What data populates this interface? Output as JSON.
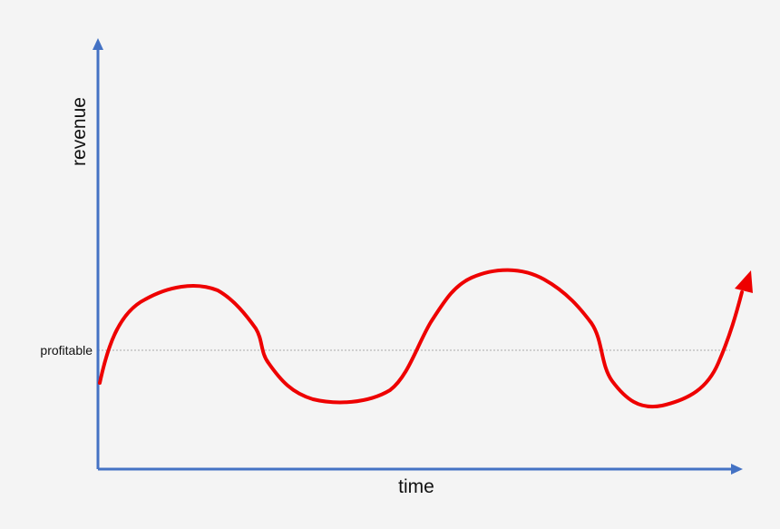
{
  "axes": {
    "y_label": "revenue",
    "x_label": "time"
  },
  "reference_line": {
    "label": "profitable"
  }
}
